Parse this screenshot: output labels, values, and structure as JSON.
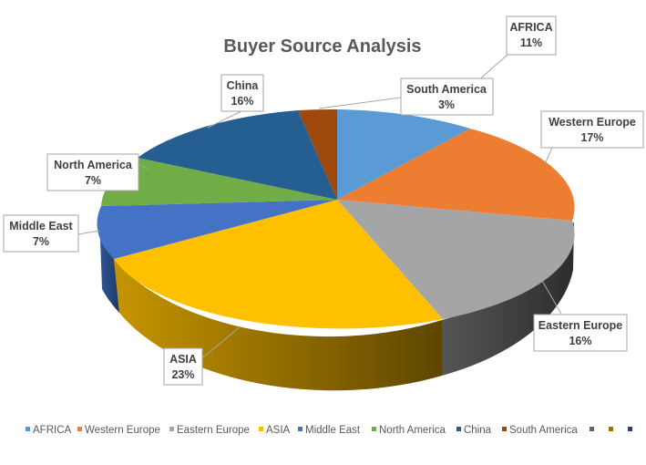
{
  "chart_data": {
    "type": "pie",
    "title": "Buyer Source Analysis",
    "slices": [
      {
        "name": "AFRICA",
        "label": "AFRICA",
        "value": 11,
        "percent_label": "11%",
        "color": "#5b9bd5"
      },
      {
        "name": "Western Europe",
        "label": "Western Europe",
        "value": 17,
        "percent_label": "17%",
        "color": "#ed7d31"
      },
      {
        "name": "Eastern Europe",
        "label": "Eastern Europe",
        "value": 16,
        "percent_label": "16%",
        "color": "#a5a5a5"
      },
      {
        "name": "ASIA",
        "label": "ASIA",
        "value": 23,
        "percent_label": "23%",
        "color": "#ffc000"
      },
      {
        "name": "Middle East",
        "label": "Middle East",
        "value": 7,
        "percent_label": "7%",
        "color": "#4472c4"
      },
      {
        "name": "North America",
        "label": "North America",
        "value": 7,
        "percent_label": "7%",
        "color": "#70ad47"
      },
      {
        "name": "China",
        "label": "China",
        "value": 16,
        "percent_label": "16%",
        "color": "#255e91"
      },
      {
        "name": "South America",
        "label": "South America",
        "value": 3,
        "percent_label": "3%",
        "color": "#9e480e"
      }
    ],
    "legend_position": "bottom",
    "legend_extra_markers": [
      "#636363",
      "#997300",
      "#264478"
    ]
  }
}
